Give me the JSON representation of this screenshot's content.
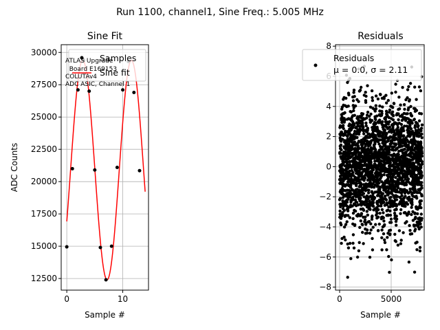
{
  "suptitle": "Run 1100, channel1, Sine Freq.: 5.005 MHz",
  "chart_data": [
    {
      "type": "line",
      "title": "Sine Fit",
      "xlabel": "Sample #",
      "ylabel": "ADC Counts",
      "xlim": [
        -1,
        14.6
      ],
      "ylim": [
        11600,
        30600
      ],
      "xticks": [
        0,
        10
      ],
      "yticks": [
        12500,
        15000,
        17500,
        20000,
        22500,
        25000,
        27500,
        30000
      ],
      "grid": true,
      "legend_position": "top-right",
      "annotation": [
        "ATLAS Upgrade",
        "  Board E169153",
        "COLUTAv4",
        "ADC ASIC, Channel 1"
      ],
      "series": [
        {
          "name": "Samples",
          "kind": "scatter",
          "color": "#000000",
          "x": [
            0,
            1,
            2,
            3,
            4,
            5,
            6,
            7,
            8,
            9,
            10,
            11,
            12,
            13
          ],
          "y": [
            14950,
            21000,
            27100,
            29400,
            27000,
            20900,
            14900,
            12400,
            15000,
            21100,
            27100,
            29300,
            26900,
            20850
          ]
        },
        {
          "name": "Sine fit",
          "kind": "line",
          "color": "#ff0000",
          "fit": {
            "offset": 20900,
            "amplitude": 8500,
            "period": 8.7,
            "phase_sample": 7.2,
            "x_range": [
              0,
              14
            ]
          }
        }
      ]
    },
    {
      "type": "scatter",
      "title": "Residuals",
      "xlabel": "Sample #",
      "ylabel": "",
      "xlim": [
        -400,
        8200
      ],
      "ylim": [
        -8.2,
        8.1
      ],
      "xticks": [
        0,
        5000
      ],
      "yticks": [
        -8,
        -6,
        -4,
        -2,
        0,
        2,
        4,
        6,
        8
      ],
      "grid": true,
      "legend_position": "top-right",
      "series": [
        {
          "name": "Residuals",
          "name_line2": "μ = 0.0, σ = 2.11",
          "color": "#000000",
          "mean": 0.0,
          "sigma": 2.11,
          "n_points": 8000,
          "range": [
            -7.4,
            6.8
          ]
        }
      ]
    }
  ]
}
